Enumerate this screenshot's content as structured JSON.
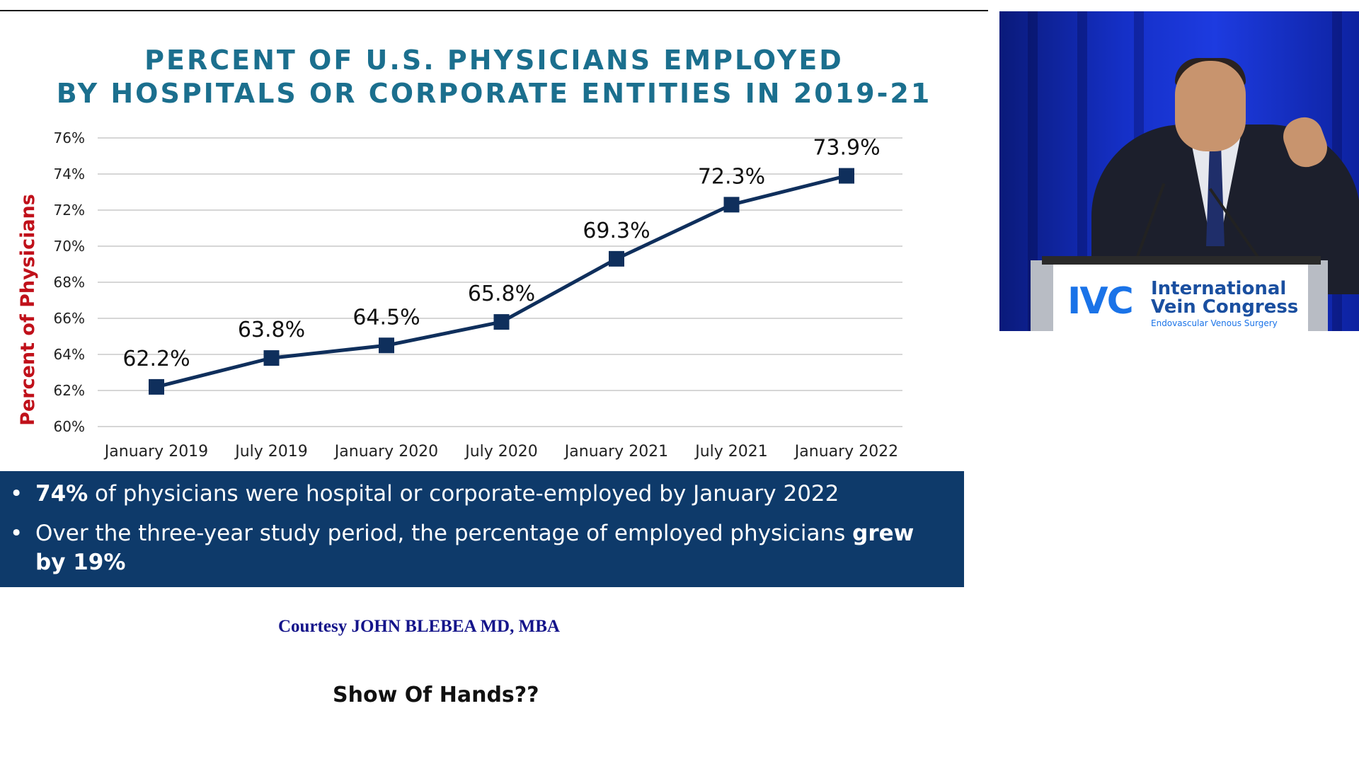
{
  "slide": {
    "title_line1": "PERCENT OF U.S. PHYSICIANS EMPLOYED",
    "title_line2": "BY HOSPITALS OR CORPORATE ENTITIES IN 2019-21",
    "bullets": [
      {
        "bold_lead": "74%",
        "text": " of physicians were hospital or corporate-employed by January 2022"
      },
      {
        "text": "Over the three-year study period, the percentage of employed physicians ",
        "bold_tail": "grew by 19%"
      }
    ],
    "bullet_glyph": "•",
    "courtesy": "Courtesy JOHN BLEBEA MD, MBA",
    "question": "Show Of Hands??"
  },
  "colors": {
    "title": "#1b6f8e",
    "line": "#0f2f5c",
    "ylabel": "#c0101a",
    "banner": "#0e3a6a",
    "courtesy": "#14148a"
  },
  "video_feed": {
    "logo_mark": "IVC",
    "logo_line1": "International",
    "logo_line2": "Vein Congress",
    "logo_sub": "Endovascular Venous Surgery"
  },
  "chart_data": {
    "type": "line",
    "title": "PERCENT OF U.S. PHYSICIANS EMPLOYED BY HOSPITALS OR CORPORATE ENTITIES IN 2019-21",
    "ylabel": "Percent of Physicians",
    "xlabel": "",
    "categories": [
      "January 2019",
      "July 2019",
      "January 2020",
      "July 2020",
      "January 2021",
      "July 2021",
      "January 2022"
    ],
    "values": [
      62.2,
      63.8,
      64.5,
      65.8,
      69.3,
      72.3,
      73.9
    ],
    "data_labels": [
      "62.2%",
      "63.8%",
      "64.5%",
      "65.8%",
      "69.3%",
      "72.3%",
      "73.9%"
    ],
    "yticks": [
      "60%",
      "62%",
      "64%",
      "66%",
      "68%",
      "70%",
      "72%",
      "74%",
      "76%"
    ],
    "ytick_values": [
      60,
      62,
      64,
      66,
      68,
      70,
      72,
      74,
      76
    ],
    "ylim": [
      60,
      76
    ],
    "grid": true,
    "marker": "square"
  }
}
